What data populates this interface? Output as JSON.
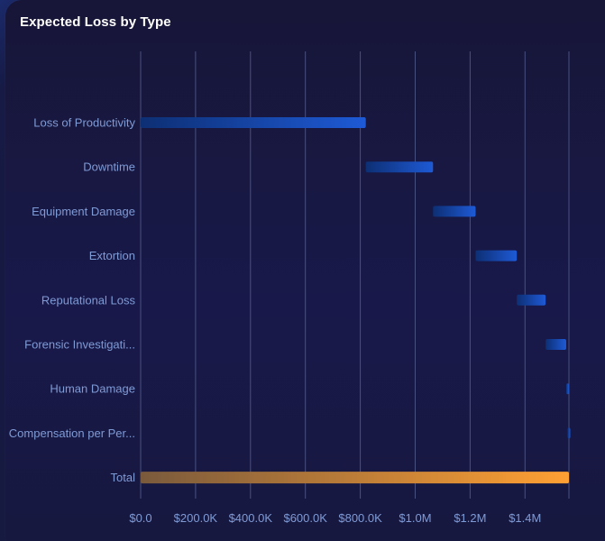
{
  "title": "Expected Loss by Type",
  "colors": {
    "bar_start": "#0d2f74",
    "bar_end": "#1e5ad6",
    "total_start": "#7a5a3c",
    "total_end": "#ffa033",
    "grid": "#4a5180",
    "label": "#7f9bd6"
  },
  "chart_data": {
    "type": "bar",
    "subtype": "waterfall-horizontal",
    "title": "Expected Loss by Type",
    "xlabel": "",
    "ylabel": "",
    "xlim": [
      0,
      1560000
    ],
    "grid": true,
    "tick_values": [
      0,
      200000,
      400000,
      600000,
      800000,
      1000000,
      1200000,
      1400000
    ],
    "tick_labels": [
      "$0.0",
      "$200.0K",
      "$400.0K",
      "$600.0K",
      "$800.0K",
      "$1.0M",
      "$1.2M",
      "$1.4M"
    ],
    "categories": [
      "Loss of Productivity",
      "Downtime",
      "Equipment Damage",
      "Extortion",
      "Reputational Loss",
      "Forensic Investigati...",
      "Human Damage",
      "Compensation per Per...",
      "Total"
    ],
    "values": [
      820000,
      245000,
      155000,
      150000,
      105000,
      75000,
      5000,
      5000,
      1560000
    ],
    "is_total": [
      false,
      false,
      false,
      false,
      false,
      false,
      false,
      false,
      true
    ]
  }
}
